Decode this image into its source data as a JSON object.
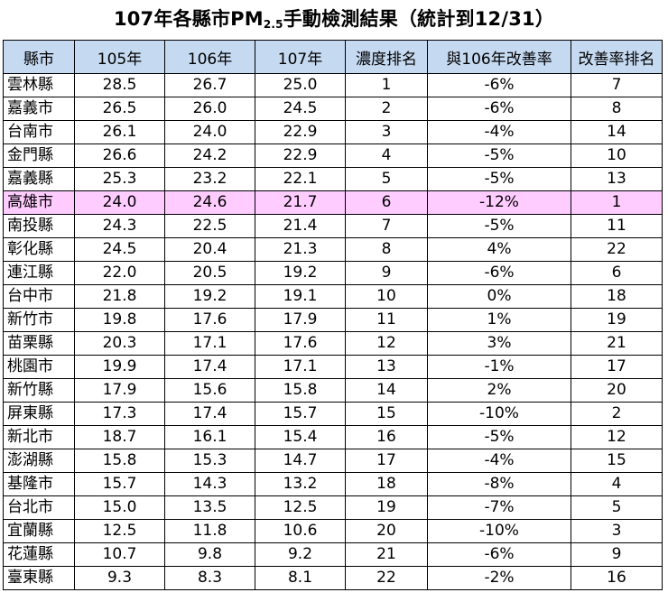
{
  "title": {
    "prefix": "107年各縣市PM",
    "subscript": "2.5",
    "suffix": "手動檢測結果（統計到12/31）"
  },
  "table": {
    "headers": [
      "縣市",
      "105年",
      "106年",
      "107年",
      "濃度排名",
      "與106年改善率",
      "改善率排名"
    ],
    "highlight_color": "#ffccff",
    "header_color": "#c5d9f1",
    "rows": [
      [
        "雲林縣",
        "28.5",
        "26.7",
        "25.0",
        "1",
        "-6%",
        "7"
      ],
      [
        "嘉義市",
        "26.5",
        "26.0",
        "24.5",
        "2",
        "-6%",
        "8"
      ],
      [
        "台南市",
        "26.1",
        "24.0",
        "22.9",
        "3",
        "-4%",
        "14"
      ],
      [
        "金門縣",
        "26.6",
        "24.2",
        "22.9",
        "4",
        "-5%",
        "10"
      ],
      [
        "嘉義縣",
        "25.3",
        "23.2",
        "22.1",
        "5",
        "-5%",
        "13"
      ],
      [
        "高雄市",
        "24.0",
        "24.6",
        "21.7",
        "6",
        "-12%",
        "1"
      ],
      [
        "南投縣",
        "24.3",
        "22.5",
        "21.4",
        "7",
        "-5%",
        "11"
      ],
      [
        "彰化縣",
        "24.5",
        "20.4",
        "21.3",
        "8",
        "4%",
        "22"
      ],
      [
        "連江縣",
        "22.0",
        "20.5",
        "19.2",
        "9",
        "-6%",
        "6"
      ],
      [
        "台中市",
        "21.8",
        "19.2",
        "19.1",
        "10",
        "0%",
        "18"
      ],
      [
        "新竹市",
        "19.8",
        "17.6",
        "17.9",
        "11",
        "1%",
        "19"
      ],
      [
        "苗栗縣",
        "20.3",
        "17.1",
        "17.6",
        "12",
        "3%",
        "21"
      ],
      [
        "桃園市",
        "19.9",
        "17.4",
        "17.1",
        "13",
        "-1%",
        "17"
      ],
      [
        "新竹縣",
        "17.9",
        "15.6",
        "15.8",
        "14",
        "2%",
        "20"
      ],
      [
        "屏東縣",
        "17.3",
        "17.4",
        "15.7",
        "15",
        "-10%",
        "2"
      ],
      [
        "新北市",
        "18.7",
        "16.1",
        "15.4",
        "16",
        "-5%",
        "12"
      ],
      [
        "澎湖縣",
        "15.8",
        "15.3",
        "14.7",
        "17",
        "-4%",
        "15"
      ],
      [
        "基隆市",
        "15.7",
        "14.3",
        "13.2",
        "18",
        "-8%",
        "4"
      ],
      [
        "台北市",
        "15.0",
        "13.5",
        "12.5",
        "19",
        "-7%",
        "5"
      ],
      [
        "宜蘭縣",
        "12.5",
        "11.8",
        "10.6",
        "20",
        "-10%",
        "3"
      ],
      [
        "花蓮縣",
        "10.7",
        "9.8",
        "9.2",
        "21",
        "-6%",
        "9"
      ],
      [
        "臺東縣",
        "9.3",
        "8.3",
        "8.1",
        "22",
        "-2%",
        "16"
      ]
    ],
    "highlighted_row_index": 5
  }
}
